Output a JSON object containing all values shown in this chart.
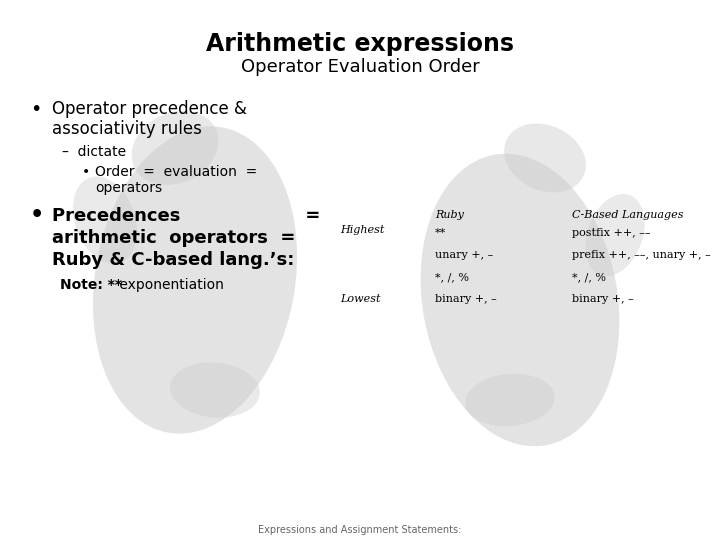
{
  "title": "Arithmetic expressions",
  "subtitle": "Operator Evaluation Order",
  "bg_color": "#ffffff",
  "watermark_color": "#cccccc",
  "bullet1_line1": "Operator precedence &",
  "bullet1_line2": "associativity rules",
  "dash1": "–  dictate",
  "sub_bullet1_line1": "Order  =  evaluation  =",
  "sub_bullet1_line2": "operators",
  "bullet2_line1": "Precedences                    =",
  "bullet2_line2": "arithmetic  operators  =",
  "bullet2_line3": "Ruby & C-based lang.’s:",
  "note_bold": "Note: **",
  "note_rest": " exponentiation",
  "table_header_ruby": "Ruby",
  "table_header_c": "C-Based Languages",
  "table_highest": "Highest",
  "table_lowest": "Lowest",
  "table_rows": [
    [
      "**",
      "postfix ++, ––"
    ],
    [
      "unary +, –",
      "prefix ++, ––, unary +, –"
    ],
    [
      "*, /, %",
      "*, /, %"
    ],
    [
      "binary +, –",
      "binary +, –"
    ]
  ],
  "footer": "Expressions and Assignment Statements:",
  "title_fontsize": 17,
  "subtitle_fontsize": 13,
  "body_fontsize": 12,
  "sub_fontsize": 10,
  "small_fontsize": 8,
  "table_fontsize": 8,
  "note_fontsize": 10
}
